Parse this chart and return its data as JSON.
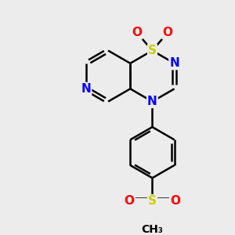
{
  "background_color": "#ececec",
  "bond_color": "#000000",
  "bond_width": 1.8,
  "atom_colors": {
    "S": "#cccc00",
    "N": "#0000ff",
    "O": "#ff0000",
    "C": "#000000"
  },
  "font_size": 11,
  "figsize": [
    3.0,
    3.0
  ],
  "dpi": 100
}
